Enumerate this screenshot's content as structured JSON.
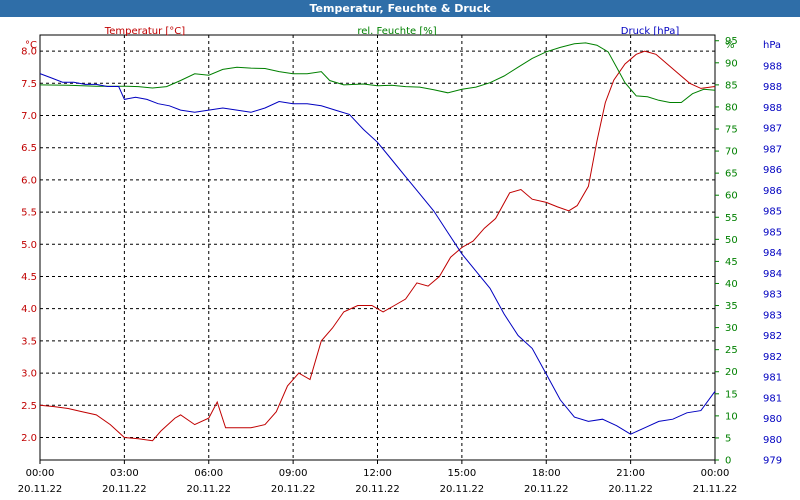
{
  "title": "Temperatur, Feuchte & Druck",
  "chart_data": {
    "type": "line",
    "x_ticks": [
      {
        "time": "00:00",
        "date": "20.11.22",
        "h": 0
      },
      {
        "time": "03:00",
        "date": "20.11.22",
        "h": 3
      },
      {
        "time": "06:00",
        "date": "20.11.22",
        "h": 6
      },
      {
        "time": "09:00",
        "date": "20.11.22",
        "h": 9
      },
      {
        "time": "12:00",
        "date": "20.11.22",
        "h": 12
      },
      {
        "time": "15:00",
        "date": "20.11.22",
        "h": 15
      },
      {
        "time": "18:00",
        "date": "20.11.22",
        "h": 18
      },
      {
        "time": "21:00",
        "date": "20.11.22",
        "h": 21
      },
      {
        "time": "00:00",
        "date": "21.11.22",
        "h": 24
      }
    ],
    "axes": {
      "temperature": {
        "label": "Temperatur [°C]",
        "unit": "°C",
        "color": "#c00000",
        "min": 1.65,
        "max": 8.25,
        "ticks": [
          "2.0",
          "2.5",
          "3.0",
          "3.5",
          "4.0",
          "4.5",
          "5.0",
          "5.5",
          "6.0",
          "6.5",
          "7.0",
          "7.5",
          "8.0"
        ]
      },
      "humidity": {
        "label": "rel. Feuchte [%]",
        "unit": "%",
        "color": "#008000",
        "min": 0,
        "max": 96.3,
        "ticks": [
          "0",
          "5",
          "10",
          "15",
          "20",
          "25",
          "30",
          "35",
          "40",
          "45",
          "50",
          "55",
          "60",
          "65",
          "70",
          "75",
          "80",
          "85",
          "90",
          "95"
        ]
      },
      "pressure": {
        "label": "Druck [hPa]",
        "unit": "hPa",
        "color": "#0000c0",
        "min": 979.0,
        "max": 988.9,
        "ticks": [
          "979",
          "980",
          "980",
          "981",
          "981",
          "982",
          "982",
          "983",
          "983",
          "984",
          "984",
          "985",
          "985",
          "986",
          "986",
          "987",
          "987",
          "988",
          "988",
          "988"
        ]
      }
    },
    "series": [
      {
        "name": "Temperatur [°C]",
        "axis": "temperature",
        "color": "#c00000",
        "points": [
          [
            0,
            2.5
          ],
          [
            0.5,
            2.48
          ],
          [
            1,
            2.45
          ],
          [
            1.5,
            2.4
          ],
          [
            2,
            2.35
          ],
          [
            2.5,
            2.2
          ],
          [
            3,
            2.0
          ],
          [
            3.5,
            1.98
          ],
          [
            4,
            1.95
          ],
          [
            4.3,
            2.1
          ],
          [
            4.8,
            2.3
          ],
          [
            5,
            2.35
          ],
          [
            5.5,
            2.2
          ],
          [
            6,
            2.3
          ],
          [
            6.3,
            2.55
          ],
          [
            6.6,
            2.15
          ],
          [
            7,
            2.15
          ],
          [
            7.5,
            2.15
          ],
          [
            8,
            2.2
          ],
          [
            8.4,
            2.4
          ],
          [
            8.8,
            2.8
          ],
          [
            9.2,
            3.0
          ],
          [
            9.6,
            2.9
          ],
          [
            10,
            3.5
          ],
          [
            10.4,
            3.7
          ],
          [
            10.8,
            3.95
          ],
          [
            11.3,
            4.05
          ],
          [
            11.8,
            4.05
          ],
          [
            12.2,
            3.95
          ],
          [
            12.6,
            4.05
          ],
          [
            13,
            4.15
          ],
          [
            13.4,
            4.4
          ],
          [
            13.8,
            4.35
          ],
          [
            14.2,
            4.5
          ],
          [
            14.6,
            4.8
          ],
          [
            15,
            4.95
          ],
          [
            15.4,
            5.05
          ],
          [
            15.8,
            5.25
          ],
          [
            16.2,
            5.4
          ],
          [
            16.7,
            5.8
          ],
          [
            17.1,
            5.85
          ],
          [
            17.5,
            5.7
          ],
          [
            18,
            5.65
          ],
          [
            18.4,
            5.58
          ],
          [
            18.8,
            5.52
          ],
          [
            19.1,
            5.6
          ],
          [
            19.5,
            5.9
          ],
          [
            19.8,
            6.6
          ],
          [
            20.1,
            7.2
          ],
          [
            20.4,
            7.55
          ],
          [
            20.8,
            7.8
          ],
          [
            21.2,
            7.95
          ],
          [
            21.5,
            8.0
          ],
          [
            21.9,
            7.95
          ],
          [
            22.3,
            7.8
          ],
          [
            22.7,
            7.65
          ],
          [
            23.1,
            7.5
          ],
          [
            23.5,
            7.42
          ],
          [
            24,
            7.45
          ]
        ]
      },
      {
        "name": "rel. Feuchte [%]",
        "axis": "humidity",
        "color": "#008000",
        "points": [
          [
            0,
            85
          ],
          [
            1,
            84.9
          ],
          [
            2,
            84.7
          ],
          [
            3,
            84.7
          ],
          [
            3.5,
            84.6
          ],
          [
            4,
            84.3
          ],
          [
            4.5,
            84.6
          ],
          [
            5,
            86
          ],
          [
            5.5,
            87.5
          ],
          [
            6,
            87.2
          ],
          [
            6.5,
            88.5
          ],
          [
            7,
            89
          ],
          [
            7.5,
            88.8
          ],
          [
            8,
            88.7
          ],
          [
            8.5,
            88
          ],
          [
            9,
            87.5
          ],
          [
            9.5,
            87.5
          ],
          [
            10,
            88
          ],
          [
            10.3,
            86
          ],
          [
            10.8,
            85
          ],
          [
            11.5,
            85.2
          ],
          [
            12,
            84.8
          ],
          [
            12.5,
            84.9
          ],
          [
            13,
            84.6
          ],
          [
            13.5,
            84.5
          ],
          [
            14,
            83.9
          ],
          [
            14.5,
            83.2
          ],
          [
            15,
            84
          ],
          [
            15.5,
            84.5
          ],
          [
            16,
            85.5
          ],
          [
            16.5,
            87
          ],
          [
            17,
            89
          ],
          [
            17.5,
            91
          ],
          [
            18,
            92.5
          ],
          [
            18.5,
            93.5
          ],
          [
            19,
            94.3
          ],
          [
            19.4,
            94.5
          ],
          [
            19.8,
            94
          ],
          [
            20.2,
            92.5
          ],
          [
            20.5,
            89
          ],
          [
            20.8,
            85.5
          ],
          [
            21.2,
            82.5
          ],
          [
            21.6,
            82.3
          ],
          [
            22,
            81.5
          ],
          [
            22.4,
            81
          ],
          [
            22.8,
            81
          ],
          [
            23.2,
            83
          ],
          [
            23.6,
            84
          ],
          [
            24,
            83.8
          ]
        ]
      },
      {
        "name": "Druck [hPa]",
        "axis": "pressure",
        "color": "#0000c0",
        "points": [
          [
            0,
            988.0
          ],
          [
            0.4,
            987.9
          ],
          [
            0.8,
            987.8
          ],
          [
            1.2,
            987.8
          ],
          [
            1.6,
            987.75
          ],
          [
            2,
            987.75
          ],
          [
            2.4,
            987.7
          ],
          [
            2.8,
            987.7
          ],
          [
            3,
            987.4
          ],
          [
            3.4,
            987.45
          ],
          [
            3.8,
            987.4
          ],
          [
            4.2,
            987.3
          ],
          [
            4.6,
            987.25
          ],
          [
            5,
            987.15
          ],
          [
            5.5,
            987.1
          ],
          [
            6,
            987.15
          ],
          [
            6.5,
            987.2
          ],
          [
            7,
            987.15
          ],
          [
            7.5,
            987.1
          ],
          [
            8,
            987.2
          ],
          [
            8.5,
            987.35
          ],
          [
            9,
            987.3
          ],
          [
            9.5,
            987.3
          ],
          [
            10,
            987.25
          ],
          [
            10.5,
            987.15
          ],
          [
            11,
            987.05
          ],
          [
            11.5,
            986.7
          ],
          [
            12,
            986.4
          ],
          [
            12.5,
            986.0
          ],
          [
            13,
            985.6
          ],
          [
            13.5,
            985.2
          ],
          [
            14,
            984.8
          ],
          [
            14.5,
            984.3
          ],
          [
            15,
            983.8
          ],
          [
            15.5,
            983.4
          ],
          [
            16,
            983.0
          ],
          [
            16.5,
            982.4
          ],
          [
            17,
            981.9
          ],
          [
            17.5,
            981.6
          ],
          [
            18,
            981.0
          ],
          [
            18.5,
            980.4
          ],
          [
            19,
            980.0
          ],
          [
            19.5,
            979.9
          ],
          [
            20,
            979.95
          ],
          [
            20.5,
            979.8
          ],
          [
            21,
            979.6
          ],
          [
            21.5,
            979.75
          ],
          [
            22,
            979.9
          ],
          [
            22.5,
            979.95
          ],
          [
            23,
            980.1
          ],
          [
            23.5,
            980.15
          ],
          [
            24,
            980.6
          ]
        ]
      }
    ],
    "grid": true,
    "xlim": [
      0,
      24
    ]
  }
}
